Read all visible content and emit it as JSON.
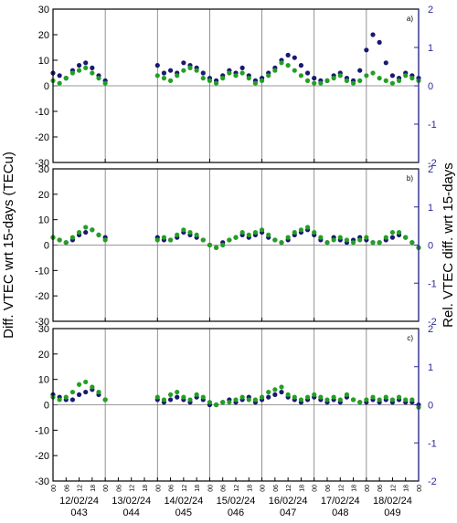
{
  "chart_data": [
    {
      "type": "scatter",
      "annotation": "a)",
      "x": [
        0,
        3,
        6,
        9,
        12,
        15,
        18,
        21,
        24,
        27,
        30,
        33,
        36,
        39,
        42,
        45,
        48,
        51,
        54,
        57,
        60,
        63,
        66,
        69,
        72,
        75,
        78,
        81,
        84,
        87,
        90,
        93,
        96,
        99,
        102,
        105,
        108,
        111,
        114,
        117,
        120,
        123,
        126,
        129,
        132,
        135,
        138,
        141,
        144,
        147,
        150,
        153,
        156,
        159,
        162,
        165,
        168
      ],
      "xlim": [
        0,
        168
      ],
      "xticks": [
        0,
        24,
        48,
        72,
        96,
        120,
        144,
        168
      ],
      "ylim": [
        -30,
        30
      ],
      "yticks": [
        -30,
        -20,
        -10,
        0,
        10,
        20,
        30
      ],
      "y2lim": [
        -2,
        2
      ],
      "y2ticks": [
        -2,
        -1,
        0,
        1,
        2
      ],
      "series": [
        {
          "color": "#191970",
          "values": [
            5,
            4,
            3,
            6,
            8,
            9,
            7,
            4,
            2,
            null,
            null,
            null,
            null,
            null,
            null,
            null,
            8,
            5,
            6,
            5,
            9,
            8,
            7,
            5,
            3,
            2,
            4,
            6,
            5,
            7,
            4,
            2,
            3,
            5,
            7,
            10,
            12,
            11,
            8,
            5,
            3,
            2,
            2,
            4,
            5,
            3,
            2,
            6,
            14,
            20,
            17,
            9,
            4,
            3,
            5,
            4,
            3
          ]
        },
        {
          "color": "#22a022",
          "values": [
            2,
            1,
            3,
            5,
            6,
            7,
            5,
            3,
            1,
            null,
            null,
            null,
            null,
            null,
            null,
            null,
            4,
            3,
            2,
            4,
            6,
            7,
            6,
            3,
            2,
            1,
            3,
            5,
            4,
            5,
            3,
            1,
            2,
            4,
            6,
            9,
            8,
            6,
            4,
            2,
            1,
            1,
            2,
            3,
            4,
            2,
            1,
            2,
            4,
            5,
            3,
            2,
            1,
            2,
            4,
            3,
            2
          ]
        }
      ]
    },
    {
      "type": "scatter",
      "annotation": "b)",
      "ylabel": "Diff. VTEC wrt 15-days (TECu)",
      "y2label": "Rel. VTEC diff. wrt 15-days",
      "x": [
        0,
        3,
        6,
        9,
        12,
        15,
        18,
        21,
        24,
        27,
        30,
        33,
        36,
        39,
        42,
        45,
        48,
        51,
        54,
        57,
        60,
        63,
        66,
        69,
        72,
        75,
        78,
        81,
        84,
        87,
        90,
        93,
        96,
        99,
        102,
        105,
        108,
        111,
        114,
        117,
        120,
        123,
        126,
        129,
        132,
        135,
        138,
        141,
        144,
        147,
        150,
        153,
        156,
        159,
        162,
        165,
        168
      ],
      "xlim": [
        0,
        168
      ],
      "xticks": [
        0,
        24,
        48,
        72,
        96,
        120,
        144,
        168
      ],
      "ylim": [
        -30,
        30
      ],
      "yticks": [
        -30,
        -20,
        -10,
        0,
        10,
        20,
        30
      ],
      "y2lim": [
        -2,
        2
      ],
      "y2ticks": [
        -2,
        -1,
        0,
        1,
        2
      ],
      "series": [
        {
          "color": "#191970",
          "values": [
            3,
            2,
            1,
            2,
            4,
            5,
            6,
            4,
            3,
            null,
            null,
            null,
            null,
            null,
            null,
            null,
            3,
            2,
            2,
            3,
            5,
            4,
            3,
            2,
            0,
            -1,
            1,
            2,
            3,
            4,
            3,
            4,
            5,
            3,
            2,
            1,
            2,
            4,
            5,
            6,
            4,
            2,
            1,
            3,
            2,
            1,
            2,
            3,
            2,
            1,
            1,
            2,
            3,
            4,
            3,
            1,
            -1
          ]
        },
        {
          "color": "#22a022",
          "values": [
            3,
            2,
            1,
            3,
            5,
            7,
            6,
            4,
            2,
            null,
            null,
            null,
            null,
            null,
            null,
            null,
            2,
            3,
            2,
            4,
            6,
            5,
            4,
            2,
            0,
            -1,
            0,
            2,
            3,
            5,
            4,
            5,
            6,
            4,
            2,
            1,
            3,
            5,
            6,
            7,
            5,
            3,
            1,
            2,
            3,
            2,
            1,
            2,
            3,
            1,
            1,
            3,
            5,
            5,
            3,
            1,
            -1
          ]
        }
      ]
    },
    {
      "type": "scatter",
      "annotation": "c)",
      "x": [
        0,
        3,
        6,
        9,
        12,
        15,
        18,
        21,
        24,
        27,
        30,
        33,
        36,
        39,
        42,
        45,
        48,
        51,
        54,
        57,
        60,
        63,
        66,
        69,
        72,
        75,
        78,
        81,
        84,
        87,
        90,
        93,
        96,
        99,
        102,
        105,
        108,
        111,
        114,
        117,
        120,
        123,
        126,
        129,
        132,
        135,
        138,
        141,
        144,
        147,
        150,
        153,
        156,
        159,
        162,
        165,
        168
      ],
      "xlim": [
        0,
        168
      ],
      "xticks": [
        {
          "value": 0,
          "label": "00"
        },
        {
          "value": 6,
          "label": "06"
        },
        {
          "value": 12,
          "label": "12"
        },
        {
          "value": 18,
          "label": "18"
        },
        {
          "value": 24,
          "label": "00"
        },
        {
          "value": 30,
          "label": "06"
        },
        {
          "value": 36,
          "label": "12"
        },
        {
          "value": 42,
          "label": "18"
        },
        {
          "value": 48,
          "label": "00"
        },
        {
          "value": 54,
          "label": "06"
        },
        {
          "value": 60,
          "label": "12"
        },
        {
          "value": 66,
          "label": "18"
        },
        {
          "value": 72,
          "label": "00"
        },
        {
          "value": 78,
          "label": "06"
        },
        {
          "value": 84,
          "label": "12"
        },
        {
          "value": 90,
          "label": "18"
        },
        {
          "value": 96,
          "label": "00"
        },
        {
          "value": 102,
          "label": "06"
        },
        {
          "value": 108,
          "label": "12"
        },
        {
          "value": 114,
          "label": "18"
        },
        {
          "value": 120,
          "label": "00"
        },
        {
          "value": 126,
          "label": "06"
        },
        {
          "value": 132,
          "label": "12"
        },
        {
          "value": 138,
          "label": "18"
        },
        {
          "value": 144,
          "label": "00"
        },
        {
          "value": 150,
          "label": "06"
        },
        {
          "value": 156,
          "label": "12"
        },
        {
          "value": 162,
          "label": "18"
        },
        {
          "value": 168,
          "label": "00"
        }
      ],
      "dates": [
        "12/02/24",
        "13/02/24",
        "14/02/24",
        "15/02/24",
        "16/02/24",
        "17/02/24",
        "18/02/24"
      ],
      "doys": [
        "043",
        "044",
        "045",
        "046",
        "047",
        "048",
        "049"
      ],
      "ylim": [
        -30,
        30
      ],
      "yticks": [
        -30,
        -20,
        -10,
        0,
        10,
        20,
        30
      ],
      "y2lim": [
        -2,
        2
      ],
      "y2ticks": [
        -2,
        -1,
        0,
        1,
        2
      ],
      "series": [
        {
          "color": "#191970",
          "values": [
            4,
            3,
            2,
            2,
            4,
            5,
            6,
            4,
            2,
            null,
            null,
            null,
            null,
            null,
            null,
            null,
            2,
            1,
            2,
            3,
            2,
            1,
            3,
            2,
            0,
            0,
            1,
            2,
            1,
            2,
            3,
            1,
            2,
            3,
            4,
            5,
            3,
            2,
            1,
            2,
            3,
            2,
            1,
            2,
            1,
            3,
            2,
            1,
            1,
            2,
            1,
            2,
            1,
            2,
            1,
            1,
            0
          ]
        },
        {
          "color": "#22a022",
          "values": [
            3,
            2,
            3,
            5,
            8,
            9,
            7,
            5,
            2,
            null,
            null,
            null,
            null,
            null,
            null,
            null,
            3,
            2,
            4,
            5,
            3,
            2,
            4,
            3,
            1,
            0,
            1,
            1,
            2,
            3,
            2,
            2,
            3,
            5,
            6,
            7,
            4,
            3,
            2,
            3,
            4,
            3,
            2,
            3,
            2,
            4,
            2,
            1,
            2,
            3,
            2,
            3,
            2,
            3,
            2,
            2,
            -1
          ]
        }
      ]
    }
  ]
}
